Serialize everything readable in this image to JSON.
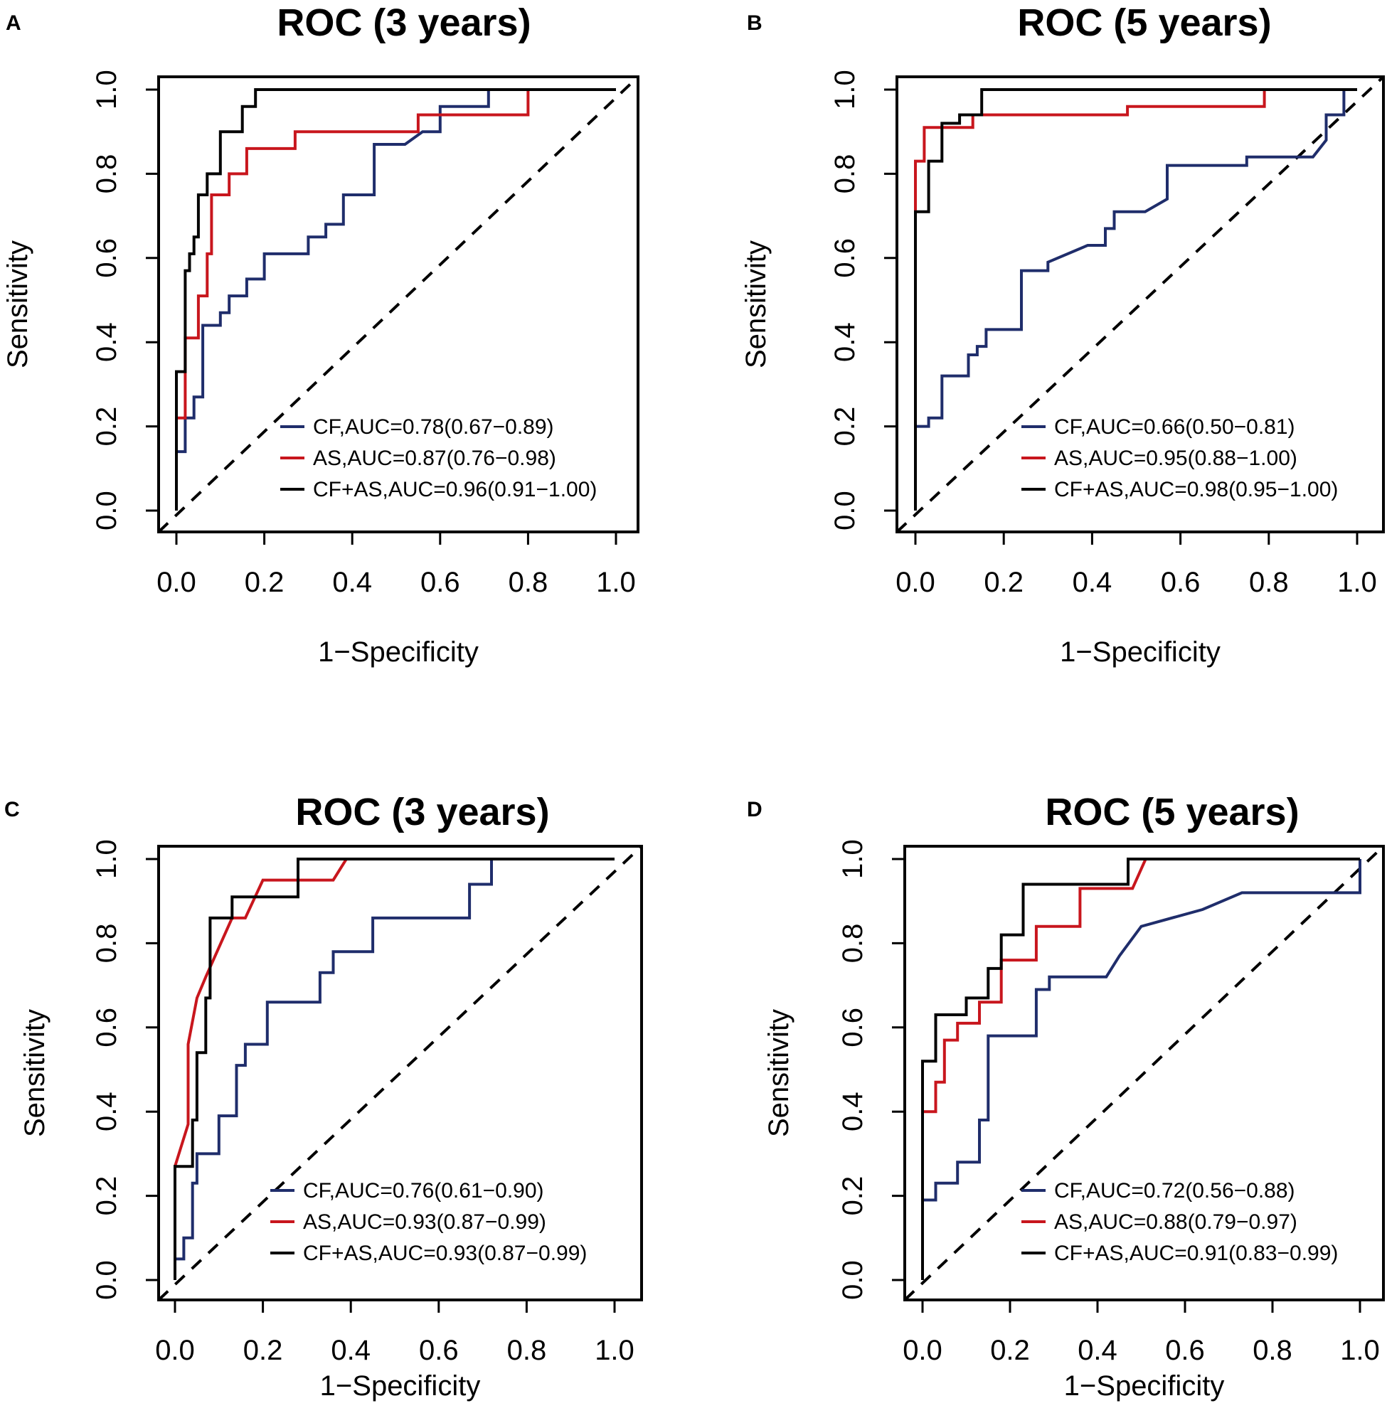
{
  "chart_data": [
    {
      "panel": "A",
      "type": "line",
      "title": "ROC (3 years)",
      "xlabel": "1−Specificity",
      "ylabel": "Sensitivity",
      "xlim": [
        0,
        1
      ],
      "ylim": [
        0,
        1
      ],
      "xticks": [
        "0.0",
        "0.2",
        "0.4",
        "0.6",
        "0.8",
        "1.0"
      ],
      "yticks": [
        "0.0",
        "0.2",
        "0.4",
        "0.6",
        "0.8",
        "1.0"
      ],
      "diagonal": "dashed reference line",
      "series": [
        {
          "name": "CF",
          "legend": "CF,AUC=0.78(0.67−0.89)",
          "color": "#1f2d6b",
          "x": [
            0.0,
            0.0,
            0.02,
            0.02,
            0.04,
            0.04,
            0.06,
            0.06,
            0.1,
            0.1,
            0.12,
            0.12,
            0.16,
            0.16,
            0.2,
            0.2,
            0.3,
            0.3,
            0.34,
            0.34,
            0.38,
            0.38,
            0.45,
            0.45,
            0.52,
            0.56,
            0.6,
            0.6,
            0.71,
            0.71,
            1.0
          ],
          "y": [
            0.0,
            0.14,
            0.14,
            0.22,
            0.22,
            0.27,
            0.27,
            0.44,
            0.44,
            0.47,
            0.47,
            0.51,
            0.51,
            0.55,
            0.55,
            0.61,
            0.61,
            0.65,
            0.65,
            0.68,
            0.68,
            0.75,
            0.75,
            0.87,
            0.87,
            0.9,
            0.9,
            0.96,
            0.96,
            1.0,
            1.0
          ]
        },
        {
          "name": "AS",
          "legend": "AS,AUC=0.87(0.76−0.98)",
          "color": "#c8161d",
          "x": [
            0.0,
            0.0,
            0.02,
            0.02,
            0.05,
            0.05,
            0.07,
            0.07,
            0.08,
            0.08,
            0.12,
            0.12,
            0.16,
            0.16,
            0.27,
            0.27,
            0.55,
            0.55,
            0.8,
            0.8,
            1.0
          ],
          "y": [
            0.0,
            0.22,
            0.22,
            0.41,
            0.41,
            0.51,
            0.51,
            0.61,
            0.61,
            0.75,
            0.75,
            0.8,
            0.8,
            0.86,
            0.86,
            0.9,
            0.9,
            0.94,
            0.94,
            1.0,
            1.0
          ]
        },
        {
          "name": "CF+AS",
          "legend": "CF+AS,AUC=0.96(0.91−1.00)",
          "color": "#000000",
          "x": [
            0.0,
            0.0,
            0.02,
            0.02,
            0.03,
            0.03,
            0.04,
            0.04,
            0.05,
            0.05,
            0.07,
            0.07,
            0.1,
            0.1,
            0.15,
            0.15,
            0.18,
            0.18,
            1.0
          ],
          "y": [
            0.0,
            0.33,
            0.33,
            0.57,
            0.57,
            0.61,
            0.61,
            0.65,
            0.65,
            0.75,
            0.75,
            0.8,
            0.8,
            0.9,
            0.9,
            0.96,
            0.96,
            1.0,
            1.0
          ]
        }
      ]
    },
    {
      "panel": "B",
      "type": "line",
      "title": "ROC (5 years)",
      "xlabel": "1−Specificity",
      "ylabel": "Sensitivity",
      "xlim": [
        0,
        1
      ],
      "ylim": [
        0,
        1
      ],
      "xticks": [
        "0.0",
        "0.2",
        "0.4",
        "0.6",
        "0.8",
        "1.0"
      ],
      "yticks": [
        "0.0",
        "0.2",
        "0.4",
        "0.6",
        "0.8",
        "1.0"
      ],
      "diagonal": "dashed reference line",
      "series": [
        {
          "name": "CF",
          "legend": "CF,AUC=0.66(0.50−0.81)",
          "color": "#1f2d6b",
          "x": [
            0.0,
            0.0,
            0.03,
            0.03,
            0.06,
            0.06,
            0.12,
            0.12,
            0.14,
            0.14,
            0.16,
            0.16,
            0.2,
            0.2,
            0.24,
            0.24,
            0.3,
            0.3,
            0.39,
            0.43,
            0.43,
            0.45,
            0.45,
            0.52,
            0.57,
            0.57,
            0.75,
            0.75,
            0.9,
            0.93,
            0.93,
            0.97,
            0.97,
            1.0
          ],
          "y": [
            0.19,
            0.2,
            0.2,
            0.22,
            0.22,
            0.32,
            0.32,
            0.37,
            0.37,
            0.39,
            0.39,
            0.43,
            0.43,
            0.43,
            0.43,
            0.57,
            0.57,
            0.59,
            0.63,
            0.63,
            0.67,
            0.67,
            0.71,
            0.71,
            0.74,
            0.82,
            0.82,
            0.84,
            0.84,
            0.88,
            0.94,
            0.94,
            1.0,
            1.0
          ]
        },
        {
          "name": "AS",
          "legend": "AS,AUC=0.95(0.88−1.00)",
          "color": "#c8161d",
          "x": [
            0.0,
            0.0,
            0.02,
            0.02,
            0.06,
            0.06,
            0.13,
            0.13,
            0.48,
            0.48,
            0.79,
            0.79,
            1.0
          ],
          "y": [
            0.0,
            0.83,
            0.83,
            0.91,
            0.91,
            0.91,
            0.91,
            0.94,
            0.94,
            0.96,
            0.96,
            1.0,
            1.0
          ]
        },
        {
          "name": "CF+AS",
          "legend": "CF+AS,AUC=0.98(0.95−1.00)",
          "color": "#000000",
          "x": [
            0.0,
            0.0,
            0.03,
            0.03,
            0.06,
            0.06,
            0.1,
            0.1,
            0.15,
            0.15,
            1.0
          ],
          "y": [
            0.0,
            0.71,
            0.71,
            0.83,
            0.83,
            0.92,
            0.92,
            0.94,
            0.94,
            1.0,
            1.0
          ]
        }
      ]
    },
    {
      "panel": "C",
      "type": "line",
      "title": "ROC (3 years)",
      "xlabel": "1−Specificity",
      "ylabel": "Sensitivity",
      "xlim": [
        0,
        1
      ],
      "ylim": [
        0,
        1
      ],
      "xticks": [
        "0.0",
        "0.2",
        "0.4",
        "0.6",
        "0.8",
        "1.0"
      ],
      "yticks": [
        "0.0",
        "0.2",
        "0.4",
        "0.6",
        "0.8",
        "1.0"
      ],
      "diagonal": "dashed reference line",
      "series": [
        {
          "name": "CF",
          "legend": "CF,AUC=0.76(0.61−0.90)",
          "color": "#1f2d6b",
          "x": [
            0.0,
            0.0,
            0.02,
            0.02,
            0.04,
            0.04,
            0.05,
            0.05,
            0.1,
            0.1,
            0.14,
            0.14,
            0.16,
            0.16,
            0.21,
            0.21,
            0.33,
            0.33,
            0.36,
            0.36,
            0.45,
            0.45,
            0.5,
            0.5,
            0.67,
            0.67,
            0.72,
            0.72,
            1.0
          ],
          "y": [
            0.0,
            0.05,
            0.05,
            0.1,
            0.1,
            0.23,
            0.23,
            0.3,
            0.3,
            0.39,
            0.39,
            0.51,
            0.51,
            0.56,
            0.56,
            0.66,
            0.66,
            0.73,
            0.73,
            0.78,
            0.78,
            0.86,
            0.86,
            0.86,
            0.86,
            0.94,
            0.94,
            1.0,
            1.0
          ]
        },
        {
          "name": "AS",
          "legend": "AS,AUC=0.93(0.87−0.99)",
          "color": "#c8161d",
          "x": [
            0.0,
            0.03,
            0.03,
            0.05,
            0.05,
            0.07,
            0.07,
            0.1,
            0.1,
            0.13,
            0.13,
            0.16,
            0.16,
            0.2,
            0.2,
            0.36,
            0.39,
            1.0
          ],
          "y": [
            0.27,
            0.37,
            0.56,
            0.67,
            0.67,
            0.72,
            0.72,
            0.79,
            0.79,
            0.86,
            0.86,
            0.86,
            0.86,
            0.95,
            0.95,
            0.95,
            1.0,
            1.0
          ]
        },
        {
          "name": "CF+AS",
          "legend": "CF+AS,AUC=0.93(0.87−0.99)",
          "color": "#000000",
          "x": [
            0.0,
            0.0,
            0.04,
            0.04,
            0.05,
            0.05,
            0.07,
            0.07,
            0.08,
            0.08,
            0.13,
            0.13,
            0.28,
            0.28,
            1.0
          ],
          "y": [
            0.0,
            0.27,
            0.27,
            0.38,
            0.38,
            0.54,
            0.54,
            0.67,
            0.67,
            0.86,
            0.86,
            0.91,
            0.91,
            1.0,
            1.0
          ]
        }
      ]
    },
    {
      "panel": "D",
      "type": "line",
      "title": "ROC (5 years)",
      "xlabel": "1−Specificity",
      "ylabel": "Sensitivity",
      "xlim": [
        0,
        1
      ],
      "ylim": [
        0,
        1
      ],
      "xticks": [
        "0.0",
        "0.2",
        "0.4",
        "0.6",
        "0.8",
        "1.0"
      ],
      "yticks": [
        "0.0",
        "0.2",
        "0.4",
        "0.6",
        "0.8",
        "1.0"
      ],
      "diagonal": "dashed reference line",
      "series": [
        {
          "name": "CF",
          "legend": "CF,AUC=0.72(0.56−0.88)",
          "color": "#1f2d6b",
          "x": [
            0.0,
            0.0,
            0.03,
            0.03,
            0.08,
            0.08,
            0.13,
            0.13,
            0.15,
            0.15,
            0.26,
            0.26,
            0.29,
            0.29,
            0.42,
            0.45,
            0.45,
            0.5,
            0.5,
            0.64,
            0.64,
            0.73,
            0.73,
            1.0,
            1.0
          ],
          "y": [
            0.0,
            0.19,
            0.19,
            0.23,
            0.23,
            0.28,
            0.28,
            0.38,
            0.38,
            0.58,
            0.58,
            0.69,
            0.69,
            0.72,
            0.72,
            0.77,
            0.77,
            0.84,
            0.84,
            0.88,
            0.88,
            0.92,
            0.92,
            0.92,
            1.0
          ]
        },
        {
          "name": "AS",
          "legend": "AS,AUC=0.88(0.79−0.97)",
          "color": "#c8161d",
          "x": [
            0.0,
            0.0,
            0.03,
            0.03,
            0.05,
            0.05,
            0.08,
            0.08,
            0.13,
            0.13,
            0.18,
            0.18,
            0.26,
            0.26,
            0.36,
            0.36,
            0.48,
            0.51,
            1.0
          ],
          "y": [
            0.0,
            0.4,
            0.4,
            0.47,
            0.47,
            0.57,
            0.57,
            0.61,
            0.61,
            0.66,
            0.66,
            0.76,
            0.76,
            0.84,
            0.84,
            0.93,
            0.93,
            1.0,
            1.0
          ]
        },
        {
          "name": "CF+AS",
          "legend": "CF+AS,AUC=0.91(0.83−0.99)",
          "color": "#000000",
          "x": [
            0.0,
            0.0,
            0.03,
            0.03,
            0.1,
            0.1,
            0.15,
            0.15,
            0.18,
            0.18,
            0.23,
            0.23,
            0.47,
            0.47,
            1.0
          ],
          "y": [
            0.0,
            0.52,
            0.52,
            0.63,
            0.63,
            0.67,
            0.67,
            0.74,
            0.74,
            0.82,
            0.82,
            0.94,
            0.94,
            1.0,
            1.0
          ]
        }
      ]
    }
  ]
}
